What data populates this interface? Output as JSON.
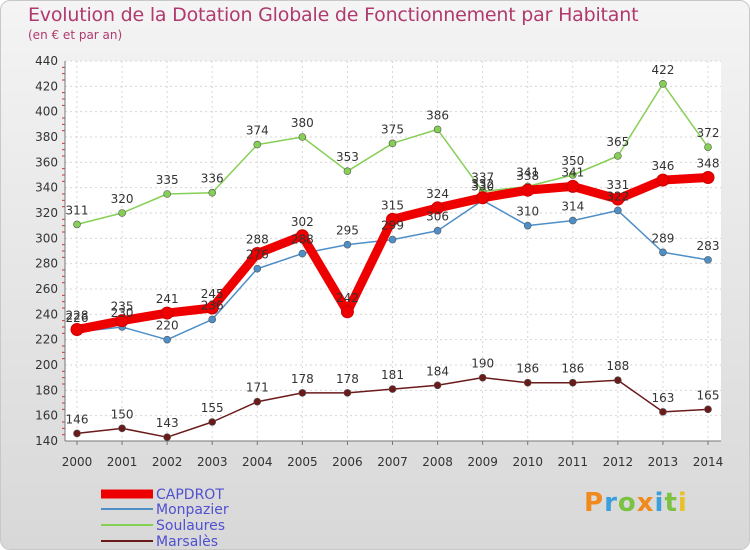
{
  "chart_data": {
    "type": "line",
    "title": "Evolution de la Dotation Globale de Fonctionnement par Habitant",
    "subtitle": "(en € et par an)",
    "x": [
      "2000",
      "2001",
      "2002",
      "2003",
      "2004",
      "2005",
      "2006",
      "2007",
      "2008",
      "2009",
      "2010",
      "2011",
      "2012",
      "2013",
      "2014"
    ],
    "ylim": [
      140,
      440
    ],
    "yticks": [
      140,
      160,
      180,
      200,
      220,
      240,
      260,
      280,
      300,
      320,
      340,
      360,
      380,
      400,
      420,
      440
    ],
    "grid": true,
    "series": [
      {
        "name": "CAPDROT",
        "color": "#ee0000",
        "values": [
          228,
          235,
          241,
          245,
          288,
          302,
          242,
          315,
          324,
          332,
          338,
          341,
          331,
          346,
          348
        ]
      },
      {
        "name": "Monpazier",
        "color": "#4f8fc8",
        "values": [
          226,
          230,
          220,
          236,
          276,
          288,
          295,
          299,
          306,
          330,
          310,
          314,
          322,
          289,
          283
        ]
      },
      {
        "name": "Soulaures",
        "color": "#86cf55",
        "values": [
          311,
          320,
          335,
          336,
          374,
          380,
          353,
          375,
          386,
          337,
          341,
          350,
          365,
          422,
          372
        ]
      },
      {
        "name": "Marsalès",
        "color": "#6b1a1a",
        "values": [
          146,
          150,
          143,
          155,
          171,
          178,
          178,
          181,
          184,
          190,
          186,
          186,
          188,
          163,
          165
        ]
      }
    ]
  },
  "logo": {
    "letters": [
      "P",
      "r",
      "o",
      "x",
      "i",
      "t",
      "i"
    ],
    "colors": [
      "#f08a1c",
      "#3aa0dc",
      "#7cc242",
      "#f08a1c",
      "#3aa0dc",
      "#7cc242",
      "#e8c12a"
    ]
  }
}
